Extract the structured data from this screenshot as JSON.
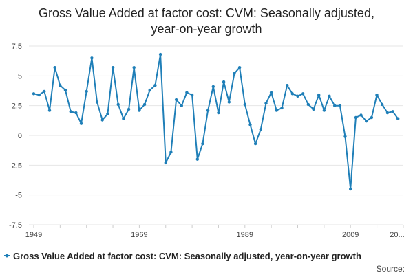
{
  "chart_data": {
    "type": "line",
    "title_line1": "Gross Value Added at factor cost: CVM: Seasonally adjusted,",
    "title_line2": "year-on-year growth",
    "xlabel": "",
    "ylabel": "",
    "ylim": [
      -7.5,
      7.5
    ],
    "y_ticks": [
      -7.5,
      -5,
      -2.5,
      0,
      2.5,
      5,
      7.5
    ],
    "y_tick_labels": [
      "-7.5",
      "-5",
      "-2.5",
      "0",
      "2.5",
      "5",
      "7.5"
    ],
    "x_tick_labels": [
      "1949",
      "1969",
      "1989",
      "2009",
      "20..."
    ],
    "legend_position": "bottom",
    "grid": true,
    "series": [
      {
        "name": "Gross Value Added at factor cost: CVM: Seasonally adjusted, year-on-year growth",
        "color": "#1f7fb8",
        "x": [
          1949,
          1950,
          1951,
          1952,
          1953,
          1954,
          1955,
          1956,
          1957,
          1958,
          1959,
          1960,
          1961,
          1962,
          1963,
          1964,
          1965,
          1966,
          1967,
          1968,
          1969,
          1970,
          1971,
          1972,
          1973,
          1974,
          1975,
          1976,
          1977,
          1978,
          1979,
          1980,
          1981,
          1982,
          1983,
          1984,
          1985,
          1986,
          1987,
          1988,
          1989,
          1990,
          1991,
          1992,
          1993,
          1994,
          1995,
          1996,
          1997,
          1998,
          1999,
          2000,
          2001,
          2002,
          2003,
          2004,
          2005,
          2006,
          2007,
          2008,
          2009,
          2010,
          2011,
          2012,
          2013,
          2014,
          2015,
          2016,
          2017,
          2018
        ],
        "values": [
          3.5,
          3.4,
          3.7,
          2.1,
          5.7,
          4.2,
          3.8,
          2.0,
          1.9,
          1.0,
          3.7,
          6.5,
          2.8,
          1.3,
          1.8,
          5.7,
          2.6,
          1.4,
          2.2,
          5.7,
          2.1,
          2.6,
          3.8,
          4.2,
          6.8,
          -2.3,
          -1.4,
          3.0,
          2.5,
          3.6,
          3.4,
          -2.0,
          -0.7,
          2.1,
          4.1,
          1.9,
          4.5,
          2.8,
          5.2,
          5.7,
          2.6,
          0.9,
          -0.7,
          0.5,
          2.7,
          3.6,
          2.1,
          2.3,
          4.2,
          3.5,
          3.3,
          3.5,
          2.6,
          2.2,
          3.4,
          2.1,
          3.3,
          2.5,
          2.5,
          -0.1,
          -4.5,
          1.5,
          1.7,
          1.2,
          1.5,
          3.4,
          2.6,
          1.9,
          2.0,
          1.4
        ]
      }
    ]
  },
  "legend": {
    "label": "Gross Value Added at factor cost: CVM: Seasonally adjusted, year-on-year growth"
  },
  "footer": {
    "source_label": "Source:"
  }
}
